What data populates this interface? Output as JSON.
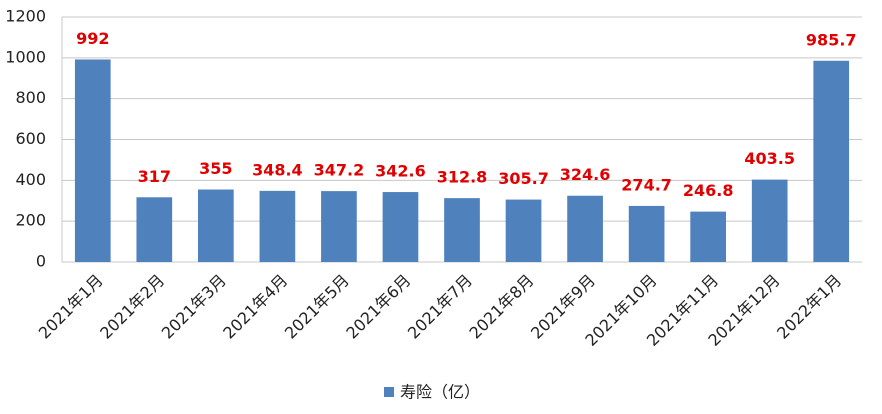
{
  "chart_data": {
    "type": "bar",
    "categories": [
      "2021年1月",
      "2021年2月",
      "2021年3月",
      "2021年4月",
      "2021年5月",
      "2021年6月",
      "2021年7月",
      "2021年8月",
      "2021年9月",
      "2021年10月",
      "2021年11月",
      "2021年12月",
      "2022年1月"
    ],
    "series": [
      {
        "name": "寿险（亿）",
        "color": "#4f81bd",
        "values": [
          992,
          317,
          355,
          348.4,
          347.2,
          342.6,
          312.8,
          305.7,
          324.6,
          274.7,
          246.8,
          403.5,
          985.7
        ]
      }
    ],
    "ylim": [
      0,
      1200
    ],
    "yticks": [
      0,
      200,
      400,
      600,
      800,
      1000,
      1200
    ],
    "grid": true,
    "value_label_color": "#e00000",
    "legend": "bottom"
  }
}
